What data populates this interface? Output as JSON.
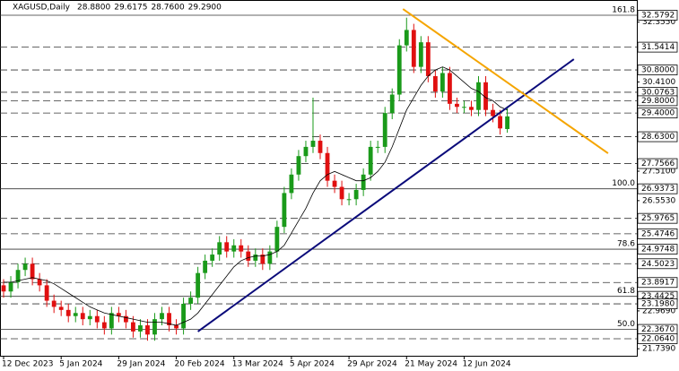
{
  "chart_data": {
    "type": "candlestick",
    "title": "XAGUSD,Daily",
    "ohlc_labels": [
      "28.8800",
      "29.6175",
      "28.7600",
      "29.2900"
    ],
    "open": [
      23.8,
      23.6,
      23.9,
      24.3,
      24.5,
      24.0,
      23.8,
      23.3,
      23.1,
      23.0,
      22.8,
      22.9,
      22.7,
      22.8,
      22.6,
      22.4,
      22.9,
      22.8,
      22.6,
      22.3,
      22.5,
      22.2,
      22.7,
      22.9,
      22.5,
      22.4,
      23.2,
      23.4,
      24.2,
      24.6,
      24.8,
      25.2,
      24.9,
      25.1,
      24.9,
      24.6,
      24.8,
      24.5,
      24.9,
      25.7,
      26.8,
      27.4,
      28.0,
      28.3,
      28.5,
      28.1,
      27.2,
      27.0,
      26.6,
      26.6,
      26.9,
      27.4,
      28.3,
      28.3,
      29.4,
      30.0,
      31.6,
      32.1,
      30.9,
      31.7,
      30.6,
      30.1,
      30.7,
      29.7,
      29.6,
      29.6,
      29.5,
      30.4,
      29.5,
      29.3,
      28.88
    ],
    "high": [
      24.0,
      24.1,
      24.5,
      24.7,
      24.7,
      24.2,
      24.0,
      23.5,
      23.3,
      23.2,
      23.1,
      23.1,
      23.0,
      23.0,
      22.8,
      23.1,
      23.1,
      23.0,
      22.8,
      22.7,
      22.7,
      22.9,
      23.1,
      23.1,
      22.7,
      23.4,
      23.6,
      24.4,
      24.8,
      25.0,
      25.4,
      25.4,
      25.3,
      25.3,
      25.1,
      25.0,
      25.0,
      25.1,
      25.9,
      27.0,
      27.6,
      28.2,
      28.5,
      29.9,
      28.7,
      28.3,
      27.4,
      27.2,
      26.8,
      27.1,
      27.6,
      28.5,
      28.5,
      29.6,
      30.2,
      31.8,
      32.5,
      32.3,
      31.9,
      31.9,
      30.8,
      30.9,
      30.9,
      29.9,
      29.8,
      29.8,
      30.6,
      30.6,
      29.7,
      29.5,
      29.6175
    ],
    "low": [
      23.4,
      23.4,
      23.7,
      24.1,
      23.8,
      23.6,
      23.1,
      22.9,
      22.8,
      22.6,
      22.6,
      22.5,
      22.5,
      22.4,
      22.2,
      22.2,
      22.6,
      22.4,
      22.1,
      22.1,
      22.0,
      22.0,
      22.5,
      22.3,
      22.2,
      22.2,
      23.0,
      23.2,
      24.0,
      24.4,
      24.6,
      24.7,
      24.7,
      24.7,
      24.4,
      24.4,
      24.3,
      24.3,
      24.7,
      25.5,
      26.6,
      27.2,
      27.8,
      28.1,
      27.9,
      27.0,
      26.8,
      26.4,
      26.4,
      26.4,
      26.7,
      27.2,
      28.1,
      28.1,
      29.2,
      29.8,
      31.4,
      30.7,
      30.7,
      30.4,
      29.9,
      29.9,
      29.5,
      29.4,
      29.4,
      29.3,
      29.3,
      29.3,
      29.1,
      28.7,
      28.76
    ],
    "close": [
      23.6,
      23.9,
      24.3,
      24.5,
      24.0,
      23.8,
      23.3,
      23.1,
      23.0,
      22.8,
      22.9,
      22.7,
      22.8,
      22.6,
      22.4,
      22.9,
      22.8,
      22.6,
      22.3,
      22.5,
      22.2,
      22.7,
      22.9,
      22.5,
      22.4,
      23.2,
      23.4,
      24.2,
      24.6,
      24.8,
      25.2,
      24.9,
      25.1,
      24.9,
      24.6,
      24.8,
      24.5,
      24.9,
      25.7,
      26.8,
      27.4,
      28.0,
      28.3,
      28.5,
      28.1,
      27.2,
      27.0,
      26.6,
      26.6,
      26.9,
      27.4,
      28.3,
      28.3,
      29.4,
      30.0,
      31.6,
      32.1,
      30.9,
      31.7,
      30.6,
      30.1,
      30.7,
      29.7,
      29.6,
      29.6,
      29.5,
      30.4,
      29.5,
      29.3,
      28.9,
      29.29
    ],
    "ma": {
      "color": "#000000",
      "values": [
        23.9,
        23.9,
        23.95,
        24.0,
        24.05,
        24.0,
        23.95,
        23.85,
        23.7,
        23.55,
        23.4,
        23.25,
        23.1,
        23.0,
        22.9,
        22.85,
        22.8,
        22.75,
        22.7,
        22.65,
        22.6,
        22.6,
        22.6,
        22.55,
        22.5,
        22.6,
        22.7,
        22.9,
        23.2,
        23.5,
        23.8,
        24.1,
        24.4,
        24.6,
        24.7,
        24.75,
        24.75,
        24.8,
        24.9,
        25.1,
        25.5,
        25.9,
        26.3,
        26.8,
        27.2,
        27.4,
        27.5,
        27.4,
        27.3,
        27.2,
        27.2,
        27.3,
        27.5,
        27.8,
        28.3,
        28.9,
        29.5,
        29.9,
        30.3,
        30.6,
        30.8,
        30.9,
        30.8,
        30.6,
        30.4,
        30.2,
        30.1,
        29.9,
        29.8,
        29.6,
        29.5
      ]
    },
    "up_color": "#1a9a1a",
    "down_color": "#e01010",
    "trendlines": [
      {
        "color": "#0a0a7a",
        "x": [
          27,
          79.25
        ],
        "y": [
          22.3,
          31.15
        ]
      },
      {
        "color": "#f5a500",
        "x": [
          55.5,
          84
        ],
        "y": [
          32.78,
          28.09
        ]
      }
    ],
    "levels": [
      {
        "value": 32.5792,
        "style": "solid",
        "fib": 161.8
      },
      {
        "value": 31.5414,
        "style": "dashed"
      },
      {
        "value": 30.8,
        "label": "30.8000",
        "style": "dashed"
      },
      {
        "value": 30.0763,
        "style": "dashed"
      },
      {
        "value": 29.8,
        "label": "29.8000",
        "style": "dashed"
      },
      {
        "value": 29.4,
        "label": "29.4000",
        "style": "dashed"
      },
      {
        "value": 28.63,
        "label": "28.6300",
        "style": "dashed"
      },
      {
        "value": 27.7566,
        "style": "dashed"
      },
      {
        "value": 26.9373,
        "style": "solid",
        "fib": {
          "value": 100,
          "label": "100.0"
        }
      },
      {
        "value": 25.9765,
        "style": "dashed"
      },
      {
        "value": 25.4746,
        "style": "dashed"
      },
      {
        "value": 24.9748,
        "style": "solid",
        "fib": 78.6
      },
      {
        "value": 24.5023,
        "style": "dashed"
      },
      {
        "value": 23.8917,
        "style": "dashed"
      },
      {
        "value": 23.4425,
        "style": "solid",
        "fib": 61.8
      },
      {
        "value": 23.198,
        "label": "23.1980",
        "style": "dashed"
      },
      {
        "value": 22.367,
        "label": "22.3670",
        "style": "solid",
        "fib": {
          "value": 50,
          "label": "50.0"
        }
      },
      {
        "value": 22.064,
        "label": "22.0640",
        "style": "dashed"
      }
    ],
    "ylim": [
      21.423,
      33.074
    ],
    "yticks": [
      {
        "value": 32.355,
        "label": "32.3550"
      },
      {
        "value": 30.41,
        "label": "30.4100"
      },
      {
        "value": 27.51,
        "label": "27.5100"
      },
      {
        "value": 26.553,
        "label": "26.5530"
      },
      {
        "value": 22.969,
        "label": "22.9690"
      },
      {
        "value": 21.739,
        "label": "21.7390"
      }
    ],
    "xlim": [
      -0.5,
      88
    ],
    "xticks": [
      {
        "value": 0,
        "label": "12 Dec 2023"
      },
      {
        "value": 8,
        "label": "5 Jan 2024"
      },
      {
        "value": 16,
        "label": "29 Jan 2024"
      },
      {
        "value": 24,
        "label": "20 Feb 2024"
      },
      {
        "value": 32,
        "label": "13 Mar 2024"
      },
      {
        "value": 40,
        "label": "5 Apr 2024"
      },
      {
        "value": 48,
        "label": "29 Apr 2024"
      },
      {
        "value": 56,
        "label": "21 May 2024"
      },
      {
        "value": 64,
        "label": "12 Jun 2024"
      }
    ]
  }
}
